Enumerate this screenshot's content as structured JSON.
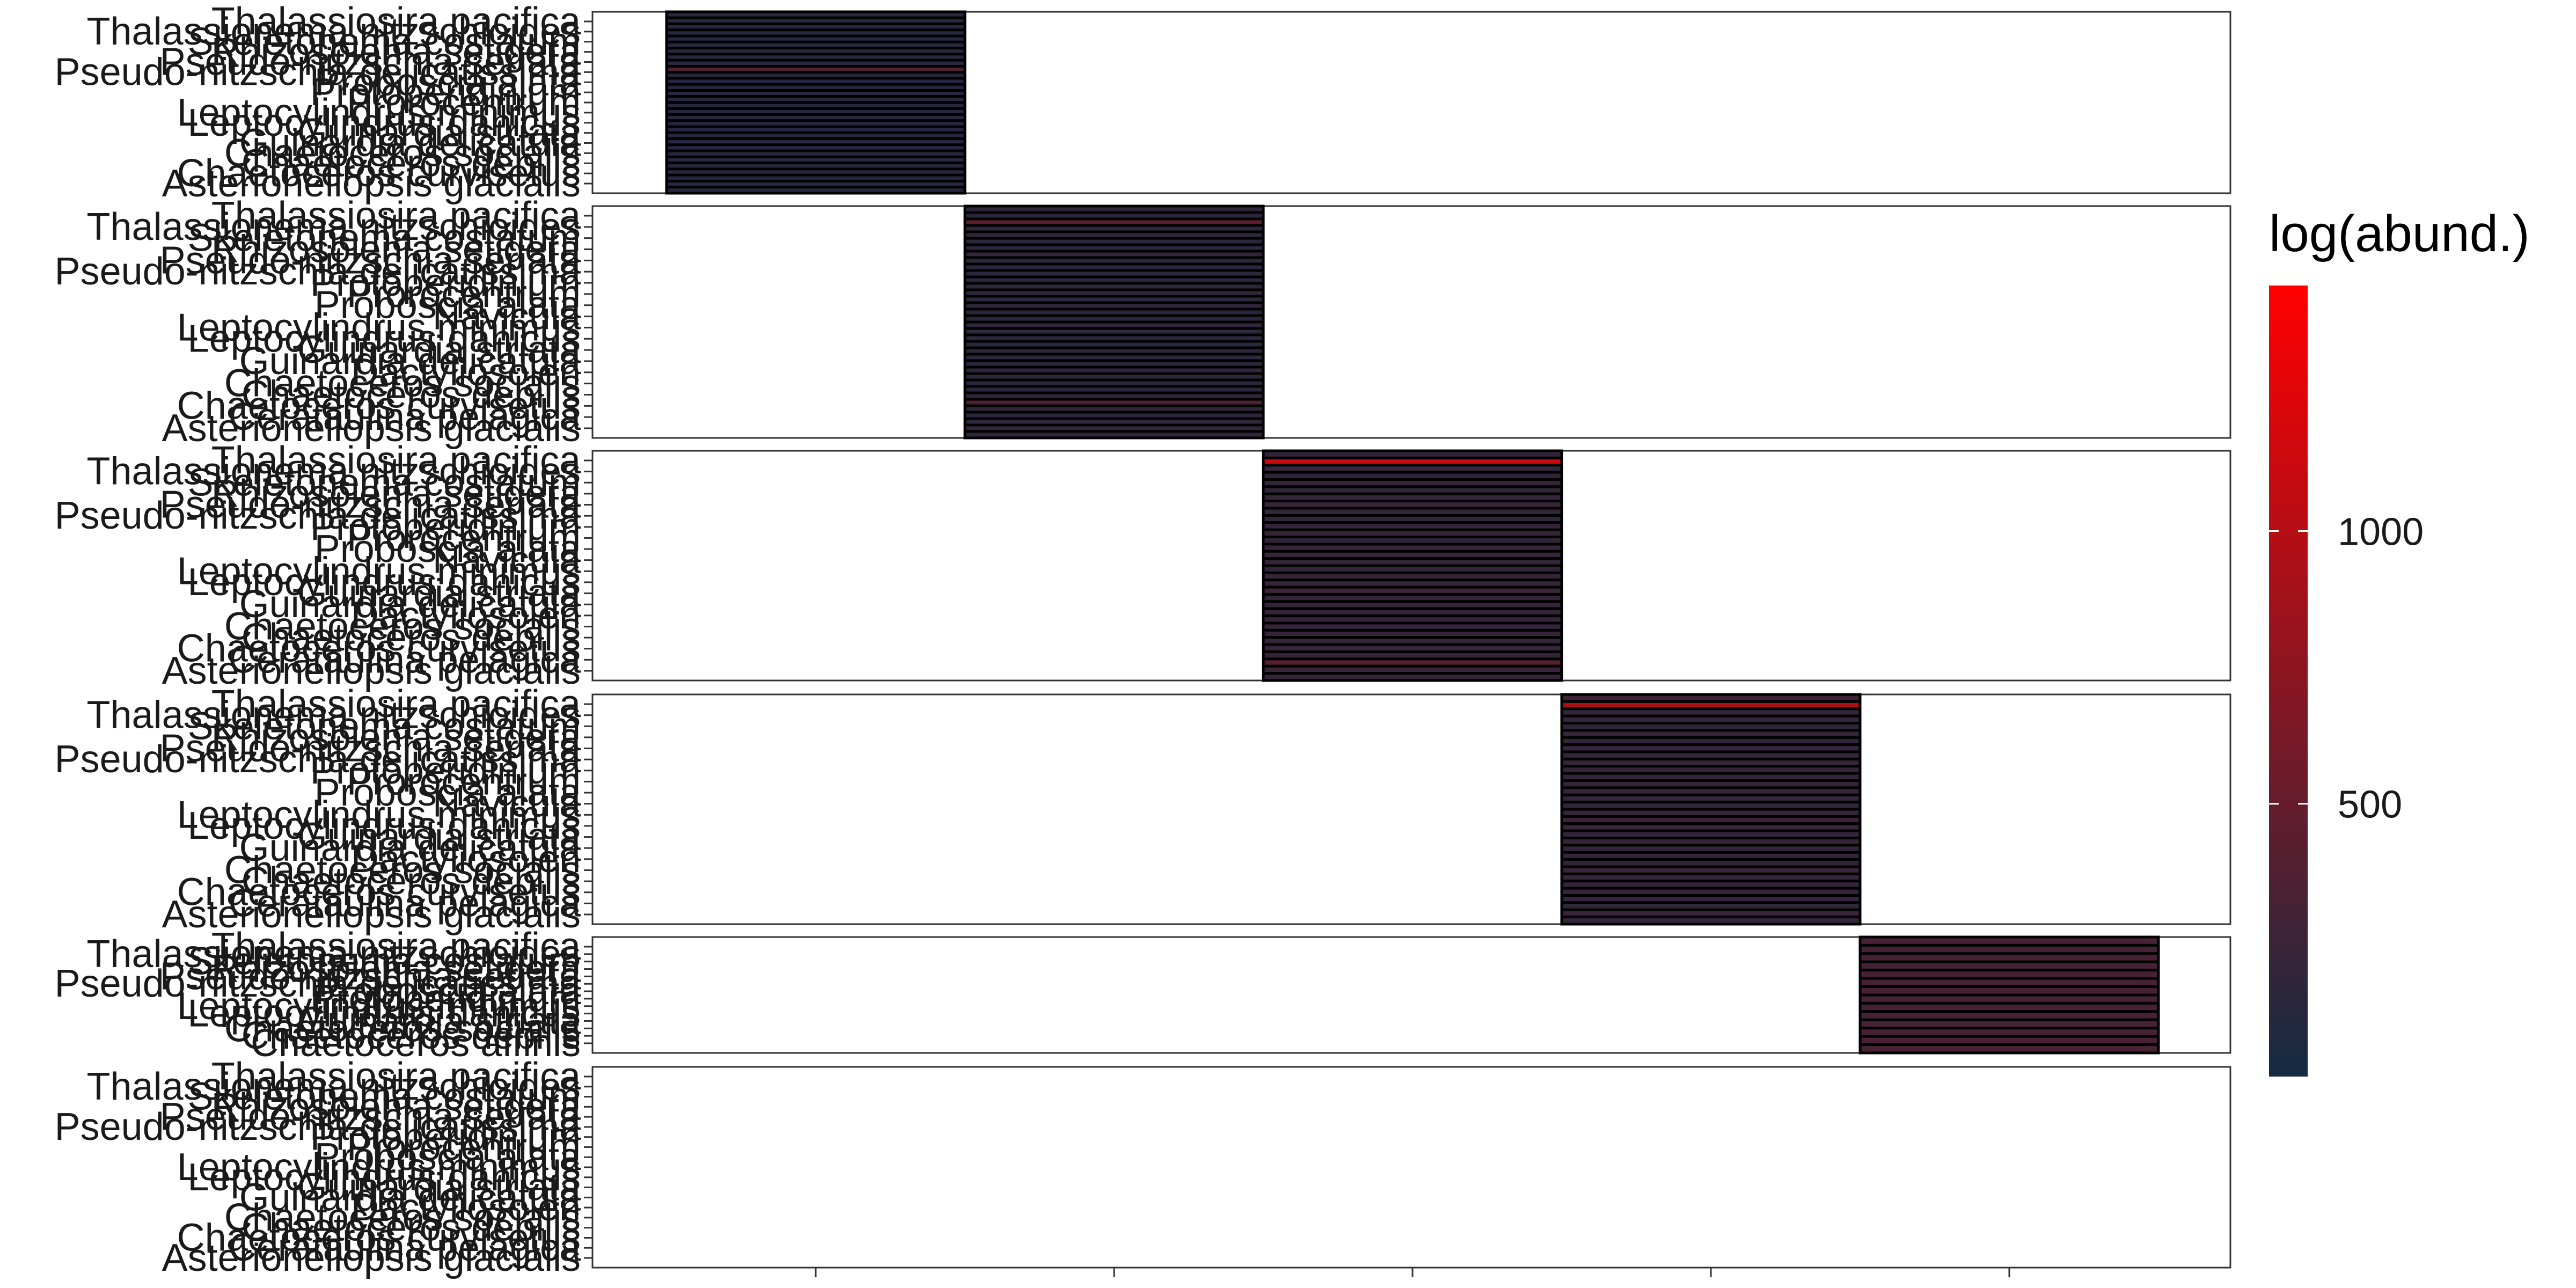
{
  "chart_data": {
    "type": "heatmap",
    "title": "",
    "xlabel": "",
    "ylabel": "",
    "color_scale": {
      "title": "log(abund.)",
      "low_color": "#132B43",
      "high_color": "#FF0000",
      "min": 0,
      "max": 1450,
      "ticks": [
        {
          "value": 500,
          "label": "500"
        },
        {
          "value": 1000,
          "label": "1000"
        }
      ]
    },
    "x_ticks": 5,
    "panels": [
      {
        "x_position": 1,
        "rows": 30,
        "labels": [
          "Thalassiosira pacifica",
          "Thalassionema nitzschioides",
          "Skeletonema costatum",
          "Rhizosolenia setigera",
          "Pseudo-nitzschia seriata",
          "Pseudo-nitzschia delicatissima",
          "Proboscia alata",
          "Protoperidinium",
          "Prorocentrum",
          "Leptocylindrus minimus",
          "Leptocylindrus danicus",
          "Guinardia striata",
          "Guinardia delicatula",
          "Chaetoceros socialis",
          "Chaetoceros debilis",
          "Chaetoceros curvisetus",
          "Asterionellopsis glacialis"
        ],
        "values": [
          120,
          110,
          100,
          115,
          105,
          125,
          95,
          110,
          115,
          360,
          100,
          105,
          110,
          98,
          120,
          115,
          105,
          110,
          100,
          95,
          120,
          110,
          105,
          100,
          115,
          120,
          110,
          105,
          100,
          110
        ]
      },
      {
        "x_position": 2,
        "rows": 36,
        "labels": [
          "Thalassiosira pacifica",
          "Thalassionema nitzschioides",
          "Skeletonema costatum",
          "Rhizosolenia setigera",
          "Pseudo-nitzschia seriata",
          "Pseudo-nitzschia delicatissima",
          "Protoperidinium",
          "Prorocentrum",
          "Proboscia alata",
          "Navicula",
          "Leptocylindrus minimus",
          "Leptocylindrus danicus",
          "Guinardia striata",
          "Guinardia delicatula",
          "Dactyliosolen",
          "Chaetoceros socialis",
          "Chaetoceros debilis",
          "Chaetoceros curvisetus",
          "Cerataulina pelagica",
          "Asterionellopsis glacialis"
        ],
        "values": [
          170,
          150,
          460,
          160,
          180,
          140,
          150,
          190,
          160,
          170,
          150,
          140,
          160,
          175,
          150,
          165,
          140,
          155,
          180,
          150,
          160,
          145,
          170,
          150,
          160,
          165,
          150,
          140,
          155,
          170,
          360,
          160,
          150,
          175,
          190,
          160
        ]
      },
      {
        "x_position": 3,
        "rows": 32,
        "labels": [
          "Thalassiosira pacifica",
          "Thalassionema nitzschioides",
          "Skeletonema costatum",
          "Rhizosolenia setigera",
          "Pseudo-nitzschia seriata",
          "Pseudo-nitzschia delicatissima",
          "Protoperidinium",
          "Prorocentrum",
          "Proboscia alata",
          "Navicula",
          "Leptocylindrus minimus",
          "Leptocylindrus danicus",
          "Guinardia striata",
          "Guinardia delicatula",
          "Dactyliosolen",
          "Chaetoceros socialis",
          "Chaetoceros debilis",
          "Chaetoceros curvisetus",
          "Cerataulina pelagica",
          "Asterionellopsis glacialis"
        ],
        "values": [
          190,
          1100,
          200,
          180,
          210,
          190,
          200,
          240,
          195,
          185,
          200,
          210,
          190,
          230,
          200,
          195,
          205,
          215,
          200,
          250,
          190,
          200,
          210,
          195,
          200,
          230,
          205,
          200,
          190,
          400,
          220,
          200
        ]
      },
      {
        "x_position": 4,
        "rows": 32,
        "labels": [
          "Thalassiosira pacifica",
          "Thalassionema nitzschioides",
          "Skeletonema costatum",
          "Rhizosolenia setigera",
          "Pseudo-nitzschia seriata",
          "Pseudo-nitzschia delicatissima",
          "Protoperidinium",
          "Prorocentrum",
          "Proboscia alata",
          "Navicula",
          "Leptocylindrus minimus",
          "Leptocylindrus danicus",
          "Guinardia striata",
          "Guinardia delicatula",
          "Dactyliosolen",
          "Chaetoceros socialis",
          "Chaetoceros debilis",
          "Chaetoceros curvisetus",
          "Cerataulina pelagica",
          "Asterionellopsis glacialis"
        ],
        "values": [
          250,
          950,
          190,
          200,
          180,
          210,
          190,
          200,
          185,
          220,
          195,
          200,
          190,
          210,
          200,
          185,
          195,
          250,
          200,
          190,
          210,
          195,
          200,
          190,
          230,
          200,
          195,
          210,
          200,
          190,
          240,
          200
        ]
      },
      {
        "x_position": 5,
        "rows": 14,
        "labels": [
          "Thalassiosira pacifica",
          "Thalassionema nitzschioides",
          "Skeletonema costatum",
          "Rhizosolenia setigera",
          "Pseudo-nitzschia seriata",
          "Pseudo-nitzschia delicatissima",
          "Proboscia alata",
          "Protoperidinium",
          "Leptocylindrus minimus",
          "Leptocylindrus danicus",
          "Guinardia striata",
          "Chaetoceros socialis",
          "Chaetoceros debilis",
          "Chaetoceros affinis"
        ],
        "values": [
          320,
          310,
          330,
          305,
          320,
          315,
          325,
          310,
          320,
          330,
          315,
          310,
          325,
          320
        ]
      },
      {
        "x_position": null,
        "rows": 0,
        "labels": [
          "Thalassiosira pacifica",
          "Thalassionema nitzschioides",
          "Skeletonema costatum",
          "Rhizosolenia setigera",
          "Pseudo-nitzschia seriata",
          "Pseudo-nitzschia delicatissima",
          "Protoperidinium",
          "Prorocentrum",
          "Proboscia alata",
          "Leptocylindrus minimus",
          "Leptocylindrus danicus",
          "Guinardia striata",
          "Guinardia delicatula",
          "Dactyliosolen",
          "Chaetoceros socialis",
          "Chaetoceros debilis",
          "Chaetoceros curvisetus",
          "Cerataulina pelagica",
          "Asterionellopsis glacialis"
        ],
        "values": []
      }
    ]
  }
}
